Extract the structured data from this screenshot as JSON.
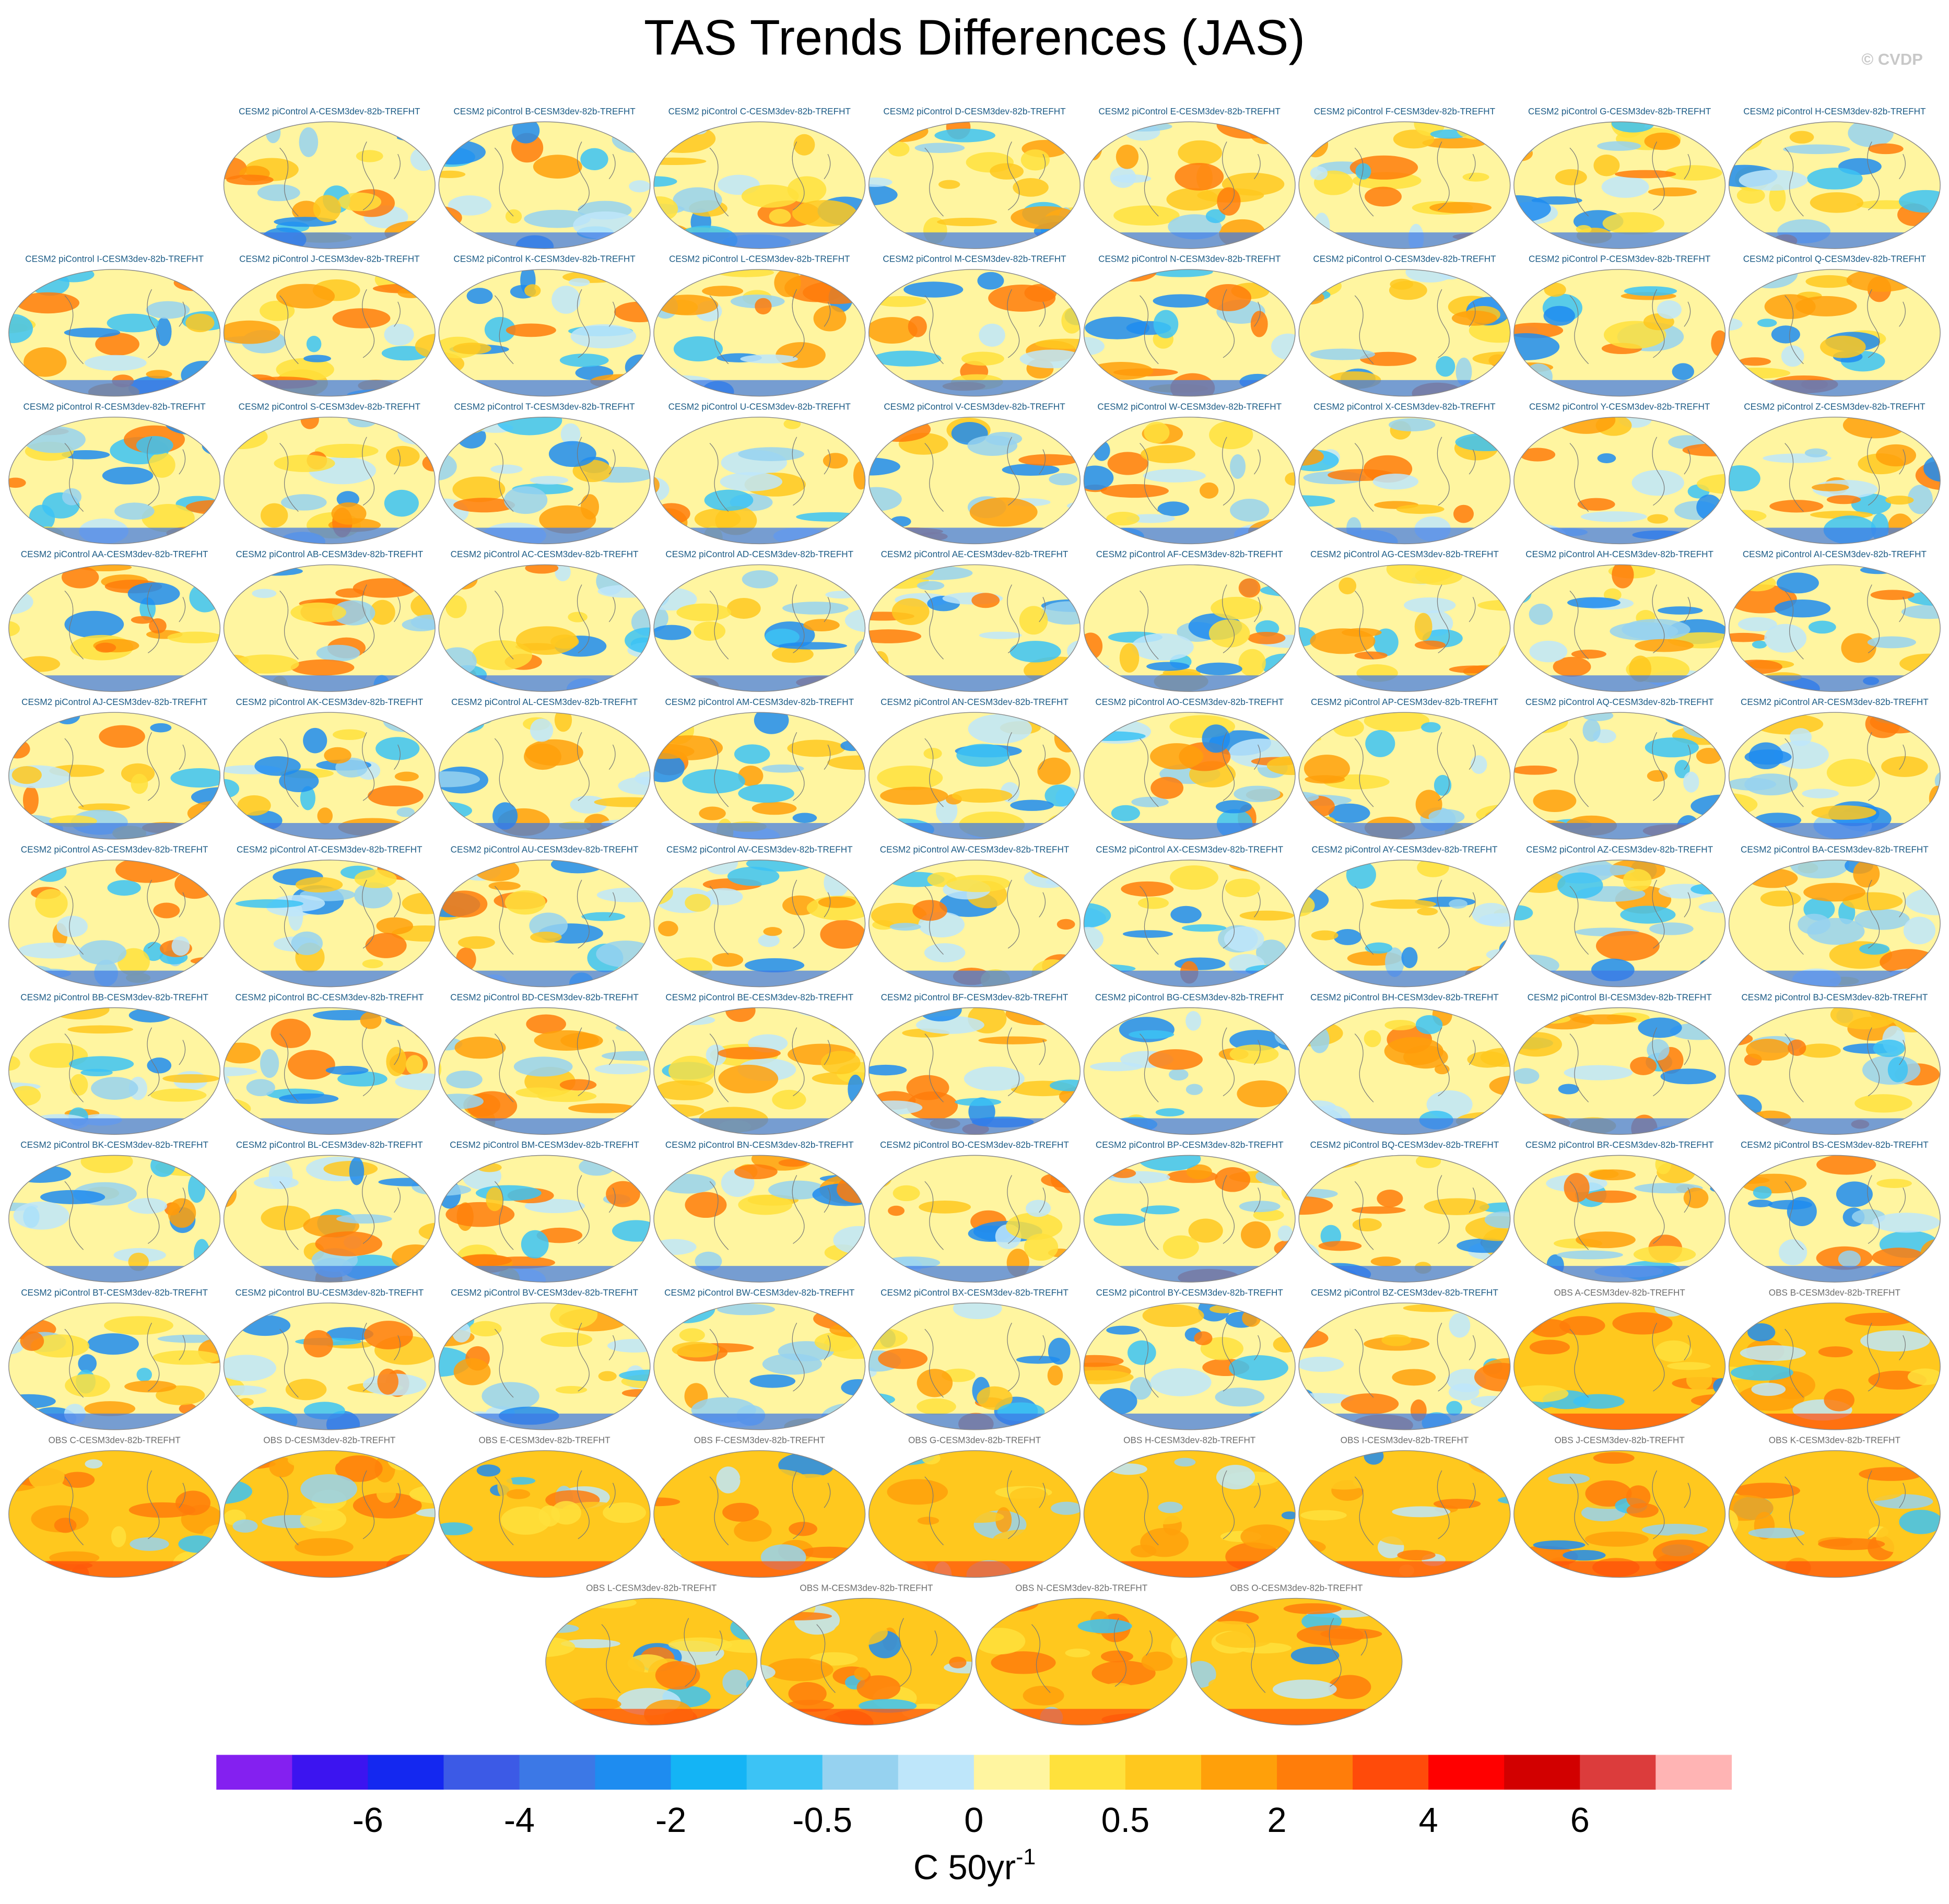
{
  "title": "TAS Trends Differences (JAS)",
  "watermark": "© CVDP",
  "model_panels": [
    "CESM2 piControl A-CESM3dev-82b-TREFHT",
    "CESM2 piControl B-CESM3dev-82b-TREFHT",
    "CESM2 piControl C-CESM3dev-82b-TREFHT",
    "CESM2 piControl D-CESM3dev-82b-TREFHT",
    "CESM2 piControl E-CESM3dev-82b-TREFHT",
    "CESM2 piControl F-CESM3dev-82b-TREFHT",
    "CESM2 piControl G-CESM3dev-82b-TREFHT",
    "CESM2 piControl H-CESM3dev-82b-TREFHT",
    "CESM2 piControl I-CESM3dev-82b-TREFHT",
    "CESM2 piControl J-CESM3dev-82b-TREFHT",
    "CESM2 piControl K-CESM3dev-82b-TREFHT",
    "CESM2 piControl L-CESM3dev-82b-TREFHT",
    "CESM2 piControl M-CESM3dev-82b-TREFHT",
    "CESM2 piControl N-CESM3dev-82b-TREFHT",
    "CESM2 piControl O-CESM3dev-82b-TREFHT",
    "CESM2 piControl P-CESM3dev-82b-TREFHT",
    "CESM2 piControl Q-CESM3dev-82b-TREFHT",
    "CESM2 piControl R-CESM3dev-82b-TREFHT",
    "CESM2 piControl S-CESM3dev-82b-TREFHT",
    "CESM2 piControl T-CESM3dev-82b-TREFHT",
    "CESM2 piControl U-CESM3dev-82b-TREFHT",
    "CESM2 piControl V-CESM3dev-82b-TREFHT",
    "CESM2 piControl W-CESM3dev-82b-TREFHT",
    "CESM2 piControl X-CESM3dev-82b-TREFHT",
    "CESM2 piControl Y-CESM3dev-82b-TREFHT",
    "CESM2 piControl Z-CESM3dev-82b-TREFHT",
    "CESM2 piControl AA-CESM3dev-82b-TREFHT",
    "CESM2 piControl AB-CESM3dev-82b-TREFHT",
    "CESM2 piControl AC-CESM3dev-82b-TREFHT",
    "CESM2 piControl AD-CESM3dev-82b-TREFHT",
    "CESM2 piControl AE-CESM3dev-82b-TREFHT",
    "CESM2 piControl AF-CESM3dev-82b-TREFHT",
    "CESM2 piControl AG-CESM3dev-82b-TREFHT",
    "CESM2 piControl AH-CESM3dev-82b-TREFHT",
    "CESM2 piControl AI-CESM3dev-82b-TREFHT",
    "CESM2 piControl AJ-CESM3dev-82b-TREFHT",
    "CESM2 piControl AK-CESM3dev-82b-TREFHT",
    "CESM2 piControl AL-CESM3dev-82b-TREFHT",
    "CESM2 piControl AM-CESM3dev-82b-TREFHT",
    "CESM2 piControl AN-CESM3dev-82b-TREFHT",
    "CESM2 piControl AO-CESM3dev-82b-TREFHT",
    "CESM2 piControl AP-CESM3dev-82b-TREFHT",
    "CESM2 piControl AQ-CESM3dev-82b-TREFHT",
    "CESM2 piControl AR-CESM3dev-82b-TREFHT",
    "CESM2 piControl AS-CESM3dev-82b-TREFHT",
    "CESM2 piControl AT-CESM3dev-82b-TREFHT",
    "CESM2 piControl AU-CESM3dev-82b-TREFHT",
    "CESM2 piControl AV-CESM3dev-82b-TREFHT",
    "CESM2 piControl AW-CESM3dev-82b-TREFHT",
    "CESM2 piControl AX-CESM3dev-82b-TREFHT",
    "CESM2 piControl AY-CESM3dev-82b-TREFHT",
    "CESM2 piControl AZ-CESM3dev-82b-TREFHT",
    "CESM2 piControl BA-CESM3dev-82b-TREFHT",
    "CESM2 piControl BB-CESM3dev-82b-TREFHT",
    "CESM2 piControl BC-CESM3dev-82b-TREFHT",
    "CESM2 piControl BD-CESM3dev-82b-TREFHT",
    "CESM2 piControl BE-CESM3dev-82b-TREFHT",
    "CESM2 piControl BF-CESM3dev-82b-TREFHT",
    "CESM2 piControl BG-CESM3dev-82b-TREFHT",
    "CESM2 piControl BH-CESM3dev-82b-TREFHT",
    "CESM2 piControl BI-CESM3dev-82b-TREFHT",
    "CESM2 piControl BJ-CESM3dev-82b-TREFHT",
    "CESM2 piControl BK-CESM3dev-82b-TREFHT",
    "CESM2 piControl BL-CESM3dev-82b-TREFHT",
    "CESM2 piControl BM-CESM3dev-82b-TREFHT",
    "CESM2 piControl BN-CESM3dev-82b-TREFHT",
    "CESM2 piControl BO-CESM3dev-82b-TREFHT",
    "CESM2 piControl BP-CESM3dev-82b-TREFHT",
    "CESM2 piControl BQ-CESM3dev-82b-TREFHT",
    "CESM2 piControl BR-CESM3dev-82b-TREFHT",
    "CESM2 piControl BS-CESM3dev-82b-TREFHT",
    "CESM2 piControl BT-CESM3dev-82b-TREFHT",
    "CESM2 piControl BU-CESM3dev-82b-TREFHT",
    "CESM2 piControl BV-CESM3dev-82b-TREFHT",
    "CESM2 piControl BW-CESM3dev-82b-TREFHT",
    "CESM2 piControl BX-CESM3dev-82b-TREFHT",
    "CESM2 piControl BY-CESM3dev-82b-TREFHT",
    "CESM2 piControl BZ-CESM3dev-82b-TREFHT"
  ],
  "obs_panels": [
    "OBS A-CESM3dev-82b-TREFHT",
    "OBS B-CESM3dev-82b-TREFHT",
    "OBS C-CESM3dev-82b-TREFHT",
    "OBS D-CESM3dev-82b-TREFHT",
    "OBS E-CESM3dev-82b-TREFHT",
    "OBS F-CESM3dev-82b-TREFHT",
    "OBS G-CESM3dev-82b-TREFHT",
    "OBS H-CESM3dev-82b-TREFHT",
    "OBS I-CESM3dev-82b-TREFHT",
    "OBS J-CESM3dev-82b-TREFHT",
    "OBS K-CESM3dev-82b-TREFHT",
    "OBS L-CESM3dev-82b-TREFHT",
    "OBS M-CESM3dev-82b-TREFHT",
    "OBS N-CESM3dev-82b-TREFHT",
    "OBS O-CESM3dev-82b-TREFHT"
  ],
  "colorbar": {
    "colors": [
      "#8420f0",
      "#3c14f0",
      "#1428f0",
      "#3c5ae6",
      "#3c78e6",
      "#1e8cf0",
      "#14b4f5",
      "#3cc3f5",
      "#96d2f0",
      "#bee6fa",
      "#fff5a0",
      "#ffe13c",
      "#ffc81e",
      "#ffa00a",
      "#ff7d0a",
      "#ff4b0a",
      "#ff0000",
      "#d20000",
      "#dc3c3c",
      "#ffb4b4"
    ],
    "ticks": [
      -6,
      -4,
      -2,
      -0.5,
      0,
      0.5,
      2,
      4,
      6
    ],
    "units": "C 50yr",
    "units_exponent": "-1"
  }
}
